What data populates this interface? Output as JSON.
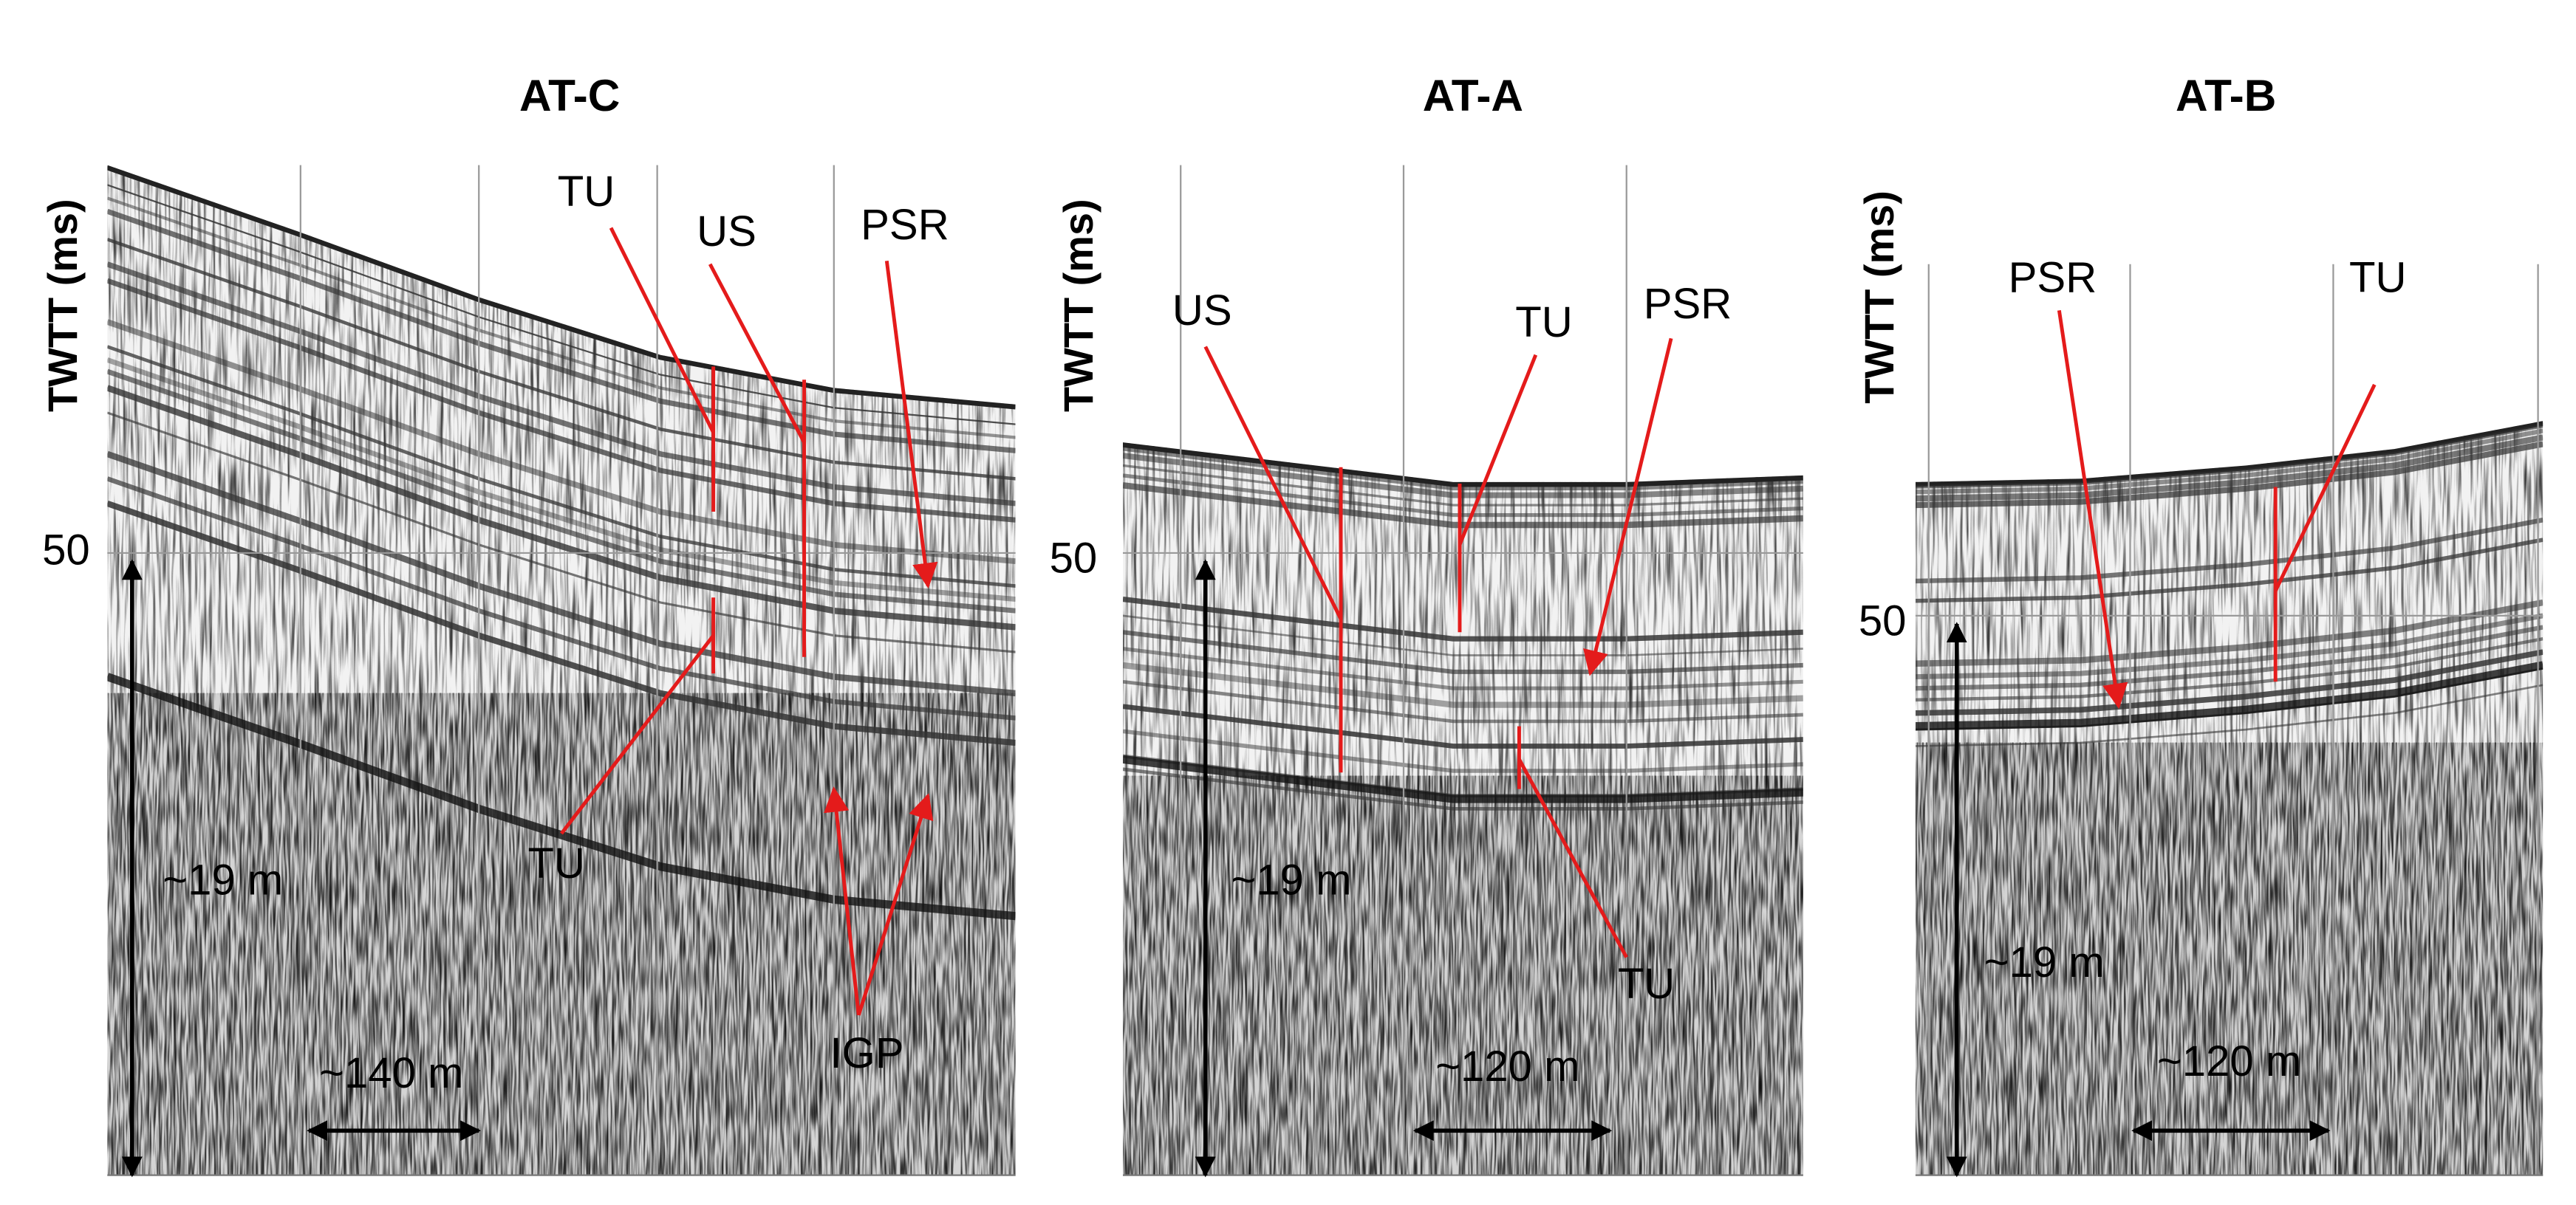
{
  "panels": [
    {
      "title": "AT-C",
      "y_axis_label": "TWTT (ms)",
      "y_tick_label": "50",
      "depth_scale": "~19 m",
      "distance_scale": "~140 m",
      "annotations": [
        "TU",
        "US",
        "PSR",
        "TU",
        "IGP"
      ]
    },
    {
      "title": "AT-A",
      "y_axis_label": "TWTT (ms)",
      "y_tick_label": "50",
      "depth_scale": "~19 m",
      "distance_scale": "~120 m",
      "annotations": [
        "US",
        "TU",
        "PSR",
        "TU"
      ]
    },
    {
      "title": "AT-B",
      "y_axis_label": "TWTT (ms)",
      "y_tick_label": "50",
      "depth_scale": "~19 m",
      "distance_scale": "~120 m",
      "annotations": [
        "PSR",
        "TU"
      ]
    }
  ]
}
